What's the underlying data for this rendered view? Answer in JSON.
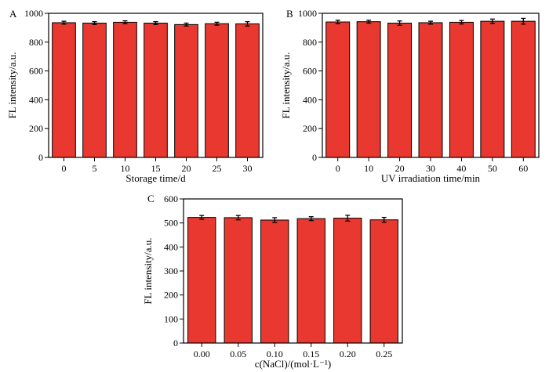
{
  "chart_data": [
    {
      "panel": "A",
      "type": "bar",
      "xlabel": "Storage time/d",
      "ylabel": "FL intensity/a.u.",
      "categories": [
        "0",
        "5",
        "10",
        "15",
        "20",
        "25",
        "30"
      ],
      "values": [
        935,
        932,
        938,
        932,
        922,
        928,
        927
      ],
      "errors": [
        10,
        10,
        10,
        10,
        10,
        10,
        15
      ],
      "ylim": [
        0,
        1000
      ],
      "yticks": [
        "0",
        "200",
        "400",
        "600",
        "800",
        "1000"
      ],
      "bar_color": "#e8382f"
    },
    {
      "panel": "B",
      "type": "bar",
      "xlabel": "UV irradiation time/min",
      "ylabel": "FL intensity/a.u.",
      "categories": [
        "0",
        "10",
        "20",
        "30",
        "40",
        "50",
        "60"
      ],
      "values": [
        940,
        942,
        932,
        935,
        938,
        945,
        945
      ],
      "errors": [
        12,
        10,
        15,
        10,
        12,
        15,
        20
      ],
      "ylim": [
        0,
        1000
      ],
      "yticks": [
        "0",
        "200",
        "400",
        "600",
        "800",
        "1000"
      ],
      "bar_color": "#e8382f"
    },
    {
      "panel": "C",
      "type": "bar",
      "xlabel": "c(NaCl)/(mol·L⁻¹)",
      "ylabel": "FL intensity/a.u.",
      "categories": [
        "0.00",
        "0.05",
        "0.10",
        "0.15",
        "0.20",
        "0.25"
      ],
      "values": [
        523,
        522,
        512,
        518,
        520,
        513
      ],
      "errors": [
        8,
        9,
        10,
        8,
        12,
        10
      ],
      "ylim": [
        0,
        600
      ],
      "yticks": [
        "0",
        "100",
        "200",
        "300",
        "400",
        "500",
        "600"
      ],
      "bar_color": "#e8382f"
    }
  ]
}
